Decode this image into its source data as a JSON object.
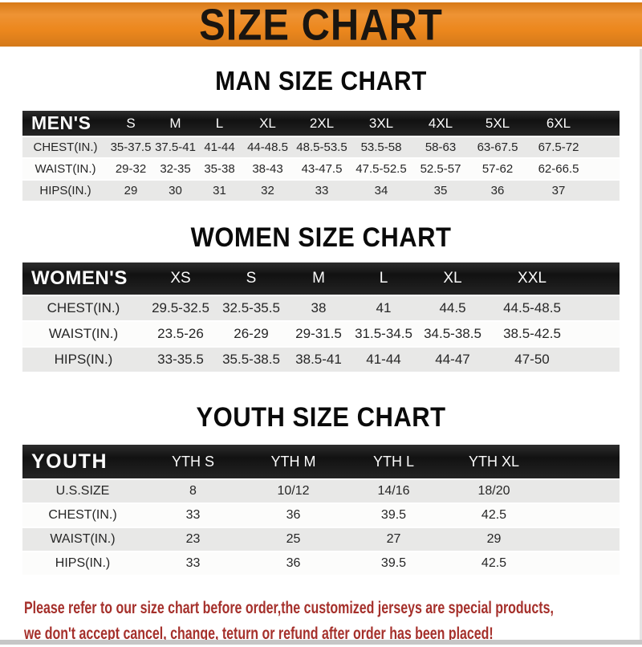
{
  "banner": {
    "title": "SIZE CHART"
  },
  "sections": [
    {
      "heading": "MAN SIZE CHART",
      "table": {
        "label": "MEN'S",
        "sizes": [
          "S",
          "M",
          "L",
          "XL",
          "2XL",
          "3XL",
          "4XL",
          "5XL",
          "6XL"
        ],
        "rows": [
          {
            "label": "CHEST(IN.)",
            "values": [
              "35-37.5",
              "37.5-41",
              "41-44",
              "44-48.5",
              "48.5-53.5",
              "53.5-58",
              "58-63",
              "63-67.5",
              "67.5-72"
            ]
          },
          {
            "label": "WAIST(IN.)",
            "values": [
              "29-32",
              "32-35",
              "35-38",
              "38-43",
              "43-47.5",
              "47.5-52.5",
              "52.5-57",
              "57-62",
              "62-66.5"
            ]
          },
          {
            "label": "HIPS(IN.)",
            "values": [
              "29",
              "30",
              "31",
              "32",
              "33",
              "34",
              "35",
              "36",
              "37"
            ]
          }
        ]
      }
    },
    {
      "heading": "WOMEN SIZE CHART",
      "table": {
        "label": "WOMEN'S",
        "sizes": [
          "XS",
          "S",
          "M",
          "L",
          "XL",
          "XXL"
        ],
        "rows": [
          {
            "label": "CHEST(IN.)",
            "values": [
              "29.5-32.5",
              "32.5-35.5",
              "38",
              "41",
              "44.5",
              "44.5-48.5"
            ]
          },
          {
            "label": "WAIST(IN.)",
            "values": [
              "23.5-26",
              "26-29",
              "29-31.5",
              "31.5-34.5",
              "34.5-38.5",
              "38.5-42.5"
            ]
          },
          {
            "label": "HIPS(IN.)",
            "values": [
              "33-35.5",
              "35.5-38.5",
              "38.5-41",
              "41-44",
              "44-47",
              "47-50"
            ]
          }
        ]
      }
    },
    {
      "heading": "YOUTH SIZE CHART",
      "table": {
        "label": "YOUTH",
        "sizes": [
          "YTH S",
          "YTH M",
          "YTH L",
          "YTH XL"
        ],
        "rows": [
          {
            "label": "U.S.SIZE",
            "values": [
              "8",
              "10/12",
              "14/16",
              "18/20"
            ]
          },
          {
            "label": "CHEST(IN.)",
            "values": [
              "33",
              "36",
              "39.5",
              "42.5"
            ]
          },
          {
            "label": "WAIST(IN.)",
            "values": [
              "23",
              "25",
              "27",
              "29"
            ]
          },
          {
            "label": "HIPS(IN.)",
            "values": [
              "33",
              "36",
              "39.5",
              "42.5"
            ]
          }
        ]
      }
    }
  ],
  "footer": {
    "line1": "Please refer to our size chart before order,the customized jerseys are special products,",
    "line2": "we don't accept cancel, change, teturn or refund after order has been placed!"
  },
  "colors": {
    "banner_bg": "#EC871D",
    "banner_text": "#1A1510",
    "bar_bg": "#181818",
    "bar_text": "#FBFBFB",
    "row_shade": "#E8E8E7",
    "row_light": "#FCFCFB",
    "cell_text": "#262626",
    "heading_text": "#0A0A0A",
    "note_text": "#A5302B",
    "edge_gray": "#C6C6C6"
  }
}
